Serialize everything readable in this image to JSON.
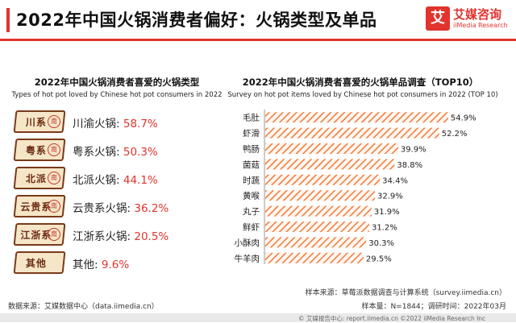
{
  "header": {
    "title": "2022年中国火锅消费者偏好：火锅类型及单品",
    "logo_mark": "艾",
    "logo_name": "艾媒咨询",
    "logo_sub": "iiMedia Research"
  },
  "left_panel": {
    "title": "2022年中国火锅消费者喜爱的火锅类型",
    "subtitle": "Types of hot pot loved by Chinese hot pot consumers in 2022",
    "items": [
      {
        "badge": "川系",
        "label": "川渝火锅:",
        "value": "58.7%"
      },
      {
        "badge": "粤系",
        "label": "粤系火锅:",
        "value": "50.3%"
      },
      {
        "badge": "北派",
        "label": "北派火锅:",
        "value": "44.1%"
      },
      {
        "badge": "云贵系",
        "label": "云贵系火锅:",
        "value": "36.2%"
      },
      {
        "badge": "江浙系",
        "label": "江浙系火锅:",
        "value": "20.5%"
      },
      {
        "badge": "其他",
        "label": "其他:",
        "value": "9.6%"
      }
    ],
    "seal_char": "南"
  },
  "chart_data": {
    "type": "bar",
    "orientation": "horizontal",
    "title": "2022年中国火锅消费者喜爱的火锅单品调查（TOP10）",
    "subtitle": "Survey on hot pot items loved by Chinese hot pot consumers in 2022   (TOP 10)",
    "categories": [
      "毛肚",
      "虾滑",
      "鸭肠",
      "菌菇",
      "时蔬",
      "黄喉",
      "丸子",
      "鲜虾",
      "小酥肉",
      "牛羊肉"
    ],
    "values": [
      54.9,
      52.2,
      39.9,
      38.8,
      34.4,
      32.9,
      31.9,
      31.2,
      30.3,
      29.5
    ],
    "value_labels": [
      "54.9%",
      "52.2%",
      "39.9%",
      "38.8%",
      "34.4%",
      "32.9%",
      "31.9%",
      "31.2%",
      "30.3%",
      "29.5%"
    ],
    "xlim": [
      0,
      60
    ],
    "bar_color": "#f07a3c",
    "bar_fill": "hatched",
    "grid": false,
    "legend": "none"
  },
  "footer": {
    "sample_source": "样本来源：草莓派数据调查与计算系统（survey.iimedia.cn）",
    "sample_size": "样本量：N=1844；调研时间：2022年03月",
    "data_source": "数据来源：艾媒数据中心（data.iimedia.cn）",
    "bottom_line": "© 艾媒报告中心: report.iimedia.cn   ©2022  iiMedia Research Inc"
  },
  "colors": {
    "accent": "#e2332d",
    "bar": "#f07a3c"
  }
}
